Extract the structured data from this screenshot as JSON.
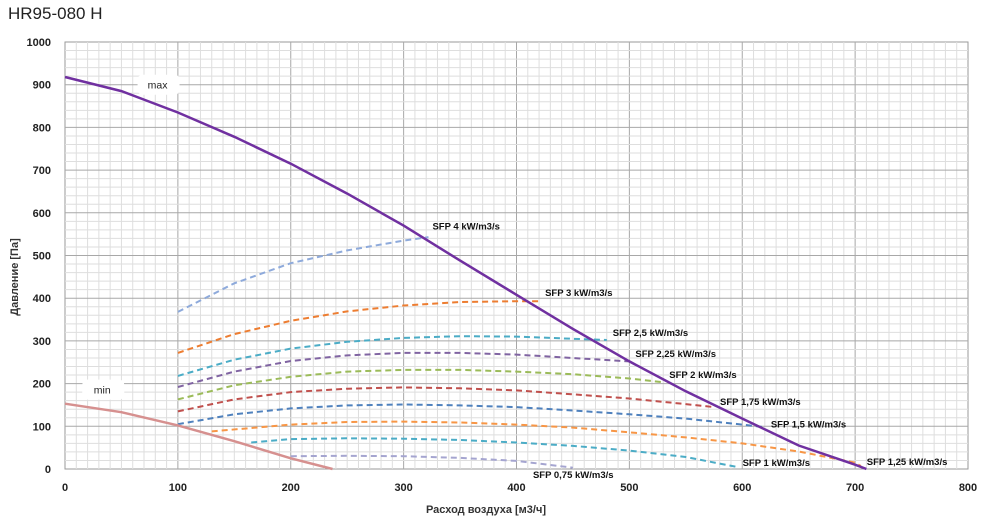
{
  "chart_data": {
    "type": "line",
    "title": "HR95-080 H",
    "xlabel": "Расход воздуха [м3/ч]",
    "ylabel": "Давление [Па]",
    "xlim": [
      0,
      800
    ],
    "ylim": [
      0,
      1000
    ],
    "x_ticks": [
      "0",
      "100",
      "200",
      "300",
      "400",
      "500",
      "600",
      "700",
      "800"
    ],
    "y_ticks": [
      "0",
      "100",
      "200",
      "300",
      "400",
      "500",
      "600",
      "700",
      "800",
      "900",
      "1000"
    ],
    "grid": true,
    "fan_curves": [
      {
        "name": "max",
        "color": "#7030a0",
        "x": [
          0,
          50,
          100,
          150,
          200,
          250,
          300,
          350,
          400,
          450,
          500,
          550,
          600,
          650,
          700,
          710
        ],
        "y": [
          918,
          885,
          835,
          778,
          715,
          645,
          570,
          488,
          408,
          328,
          252,
          182,
          118,
          55,
          10,
          0
        ]
      },
      {
        "name": "min",
        "color": "#d6908f",
        "x": [
          0,
          50,
          100,
          150,
          200,
          237
        ],
        "y": [
          153,
          133,
          102,
          65,
          25,
          0
        ]
      }
    ],
    "sfp_curves": [
      {
        "name": "SFP 4 kW/m3/s",
        "color": "#8eaadb",
        "label_at": [
          322,
          552
        ],
        "x": [
          100,
          150,
          200,
          250,
          300,
          322
        ],
        "y": [
          368,
          435,
          482,
          512,
          535,
          543
        ]
      },
      {
        "name": "SFP 3 kW/m3/s",
        "color": "#ed7d31",
        "label_at": [
          420,
          400
        ],
        "x": [
          100,
          150,
          200,
          250,
          300,
          350,
          400,
          420
        ],
        "y": [
          272,
          316,
          347,
          369,
          383,
          391,
          393,
          393
        ]
      },
      {
        "name": "SFP 2,5 kW/m3/s",
        "color": "#4bacc6",
        "label_at": [
          480,
          307
        ],
        "x": [
          100,
          150,
          200,
          250,
          300,
          350,
          400,
          450,
          480
        ],
        "y": [
          218,
          256,
          282,
          298,
          307,
          311,
          310,
          305,
          302
        ]
      },
      {
        "name": "SFP 2,25 kW/m3/s",
        "color": "#8064a2",
        "label_at": [
          500,
          258
        ],
        "x": [
          100,
          150,
          200,
          250,
          300,
          350,
          400,
          450,
          500
        ],
        "y": [
          192,
          228,
          253,
          266,
          272,
          272,
          268,
          260,
          252
        ]
      },
      {
        "name": "SFP 2 kW/m3/s",
        "color": "#9bbb59",
        "label_at": [
          530,
          208
        ],
        "x": [
          100,
          150,
          200,
          250,
          300,
          350,
          400,
          450,
          500,
          530
        ],
        "y": [
          163,
          196,
          216,
          228,
          232,
          232,
          228,
          222,
          212,
          203
        ]
      },
      {
        "name": "SFP 1,75 kW/m3/s",
        "color": "#c0504d",
        "label_at": [
          575,
          145
        ],
        "x": [
          100,
          150,
          200,
          250,
          300,
          350,
          400,
          450,
          500,
          550,
          575
        ],
        "y": [
          135,
          163,
          180,
          188,
          191,
          189,
          184,
          175,
          165,
          152,
          145
        ]
      },
      {
        "name": "SFP 1,5 kW/m3/s",
        "color": "#4f81bd",
        "label_at": [
          620,
          93
        ],
        "x": [
          100,
          150,
          200,
          250,
          300,
          350,
          400,
          450,
          500,
          550,
          600,
          620
        ],
        "y": [
          105,
          128,
          142,
          149,
          151,
          149,
          145,
          137,
          128,
          118,
          104,
          98
        ]
      },
      {
        "name": "SFP 1,25 kW/m3/s",
        "color": "#f79646",
        "label_at": [
          705,
          5
        ],
        "x": [
          130,
          200,
          250,
          300,
          350,
          400,
          450,
          500,
          550,
          600,
          650,
          700,
          705
        ],
        "y": [
          88,
          104,
          110,
          111,
          109,
          104,
          97,
          86,
          74,
          60,
          41,
          15,
          7
        ]
      },
      {
        "name": "SFP 1 kW/m3/s",
        "color": "#4bacc6",
        "label_at": [
          595,
          2
        ],
        "x": [
          165,
          200,
          250,
          300,
          350,
          400,
          450,
          500,
          550,
          595
        ],
        "y": [
          62,
          70,
          72,
          71,
          68,
          62,
          54,
          43,
          28,
          5
        ]
      },
      {
        "name": "SFP 0,75 kW/m3/s",
        "color": "#a5a5d0",
        "label_at": [
          450,
          2
        ],
        "x": [
          200,
          250,
          300,
          350,
          400,
          450
        ],
        "y": [
          30,
          31,
          30,
          26,
          19,
          3
        ]
      }
    ],
    "sfp_label_positions": [
      "above-right",
      "right",
      "right",
      "right",
      "right",
      "right",
      "right",
      "right",
      "right",
      "below"
    ]
  }
}
